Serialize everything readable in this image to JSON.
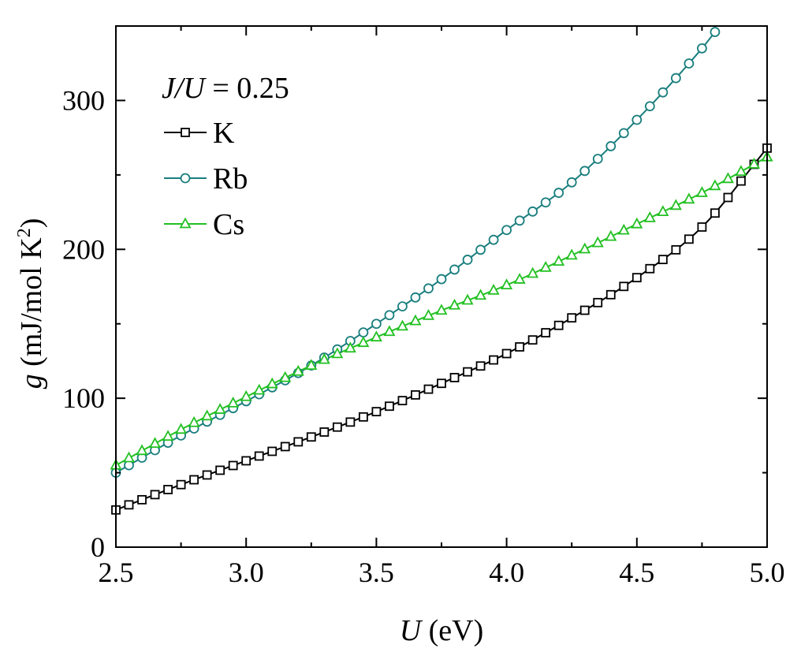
{
  "chart_data": {
    "type": "line",
    "annotation": {
      "italic_part": "J/U",
      "rest": " = 0.25"
    },
    "xlabel": {
      "symbol": "U",
      "unit": " (eV)"
    },
    "ylabel": {
      "symbol": "g",
      "unit": " (mJ/mol K",
      "sup": "2",
      "close": ")"
    },
    "xlim": [
      2.5,
      5.0
    ],
    "ylim": [
      0,
      350
    ],
    "x_ticks": [
      2.5,
      3.0,
      3.5,
      4.0,
      4.5,
      5.0
    ],
    "x_tick_labels": [
      "2.5",
      "3.0",
      "3.5",
      "4.0",
      "4.5",
      "5.0"
    ],
    "y_ticks": [
      0,
      100,
      200,
      300
    ],
    "y_tick_labels": [
      "0",
      "100",
      "200",
      "300"
    ],
    "y_minor_ticks": [
      50,
      150,
      250
    ],
    "x_minor_ticks": [
      2.75,
      3.25,
      3.75,
      4.25,
      4.75
    ],
    "legend_position": "top-left",
    "series": [
      {
        "name": "K",
        "marker": "square",
        "color": "#000000",
        "marker_step": 0.05,
        "marker_x_range": [
          2.5,
          5.0
        ],
        "x": [
          2.5,
          2.75,
          3.0,
          3.25,
          3.5,
          3.75,
          4.0,
          4.25,
          4.5,
          4.75,
          5.0
        ],
        "y": [
          25,
          42,
          58,
          74,
          91,
          110,
          130,
          154,
          181,
          215,
          268
        ]
      },
      {
        "name": "Rb",
        "marker": "circle",
        "color": "#1a7e7e",
        "marker_step": 0.05,
        "marker_x_range": [
          2.5,
          4.8
        ],
        "x": [
          2.5,
          2.75,
          3.0,
          3.25,
          3.5,
          3.75,
          4.0,
          4.25,
          4.5,
          4.75,
          4.8
        ],
        "y": [
          50,
          75,
          98,
          122,
          150,
          180,
          213,
          245,
          287,
          335,
          346
        ]
      },
      {
        "name": "Cs",
        "marker": "triangle",
        "color": "#22c022",
        "marker_step": 0.05,
        "marker_x_range": [
          2.5,
          5.0
        ],
        "x": [
          2.5,
          2.75,
          3.0,
          3.25,
          3.5,
          3.75,
          4.0,
          4.25,
          4.5,
          4.75,
          5.0
        ],
        "y": [
          55,
          79,
          101,
          122,
          141,
          159,
          176,
          196,
          217,
          238,
          262
        ]
      }
    ]
  }
}
